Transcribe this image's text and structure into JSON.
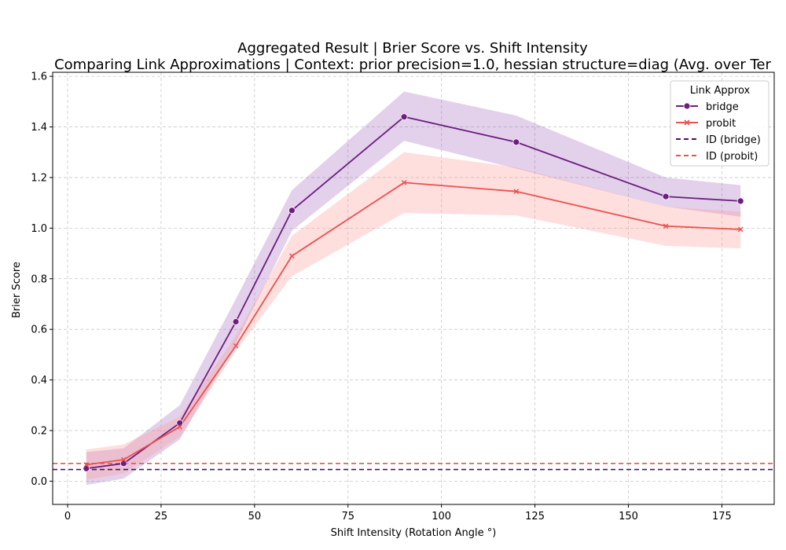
{
  "chart_data": {
    "type": "line",
    "title": "Aggregated Result | Brier Score vs. Shift Intensity",
    "subtitle": "Comparing Link Approximations | Context: prior precision=1.0, hessian structure=diag (Avg. over Ter",
    "xlabel": "Shift Intensity (Rotation Angle °)",
    "ylabel": "Brier Score",
    "xlim": [
      -4,
      189
    ],
    "ylim": [
      -0.092,
      1.616
    ],
    "xticks": [
      0,
      25,
      50,
      75,
      100,
      125,
      150,
      175
    ],
    "yticks": [
      0.0,
      0.2,
      0.4,
      0.6,
      0.8,
      1.0,
      1.2,
      1.4,
      1.6
    ],
    "xtick_labels": [
      "0",
      "25",
      "50",
      "75",
      "100",
      "125",
      "150",
      "175"
    ],
    "ytick_labels": [
      "0.0",
      "0.2",
      "0.4",
      "0.6",
      "0.8",
      "1.0",
      "1.2",
      "1.4",
      "1.6"
    ],
    "grid": true,
    "legend_title": "Link Approx",
    "legend_position": "top-right",
    "series": [
      {
        "name": "bridge",
        "color": "#6c1d7f",
        "marker": "circle",
        "x": [
          5,
          15,
          30,
          45,
          60,
          90,
          120,
          160,
          180
        ],
        "y": [
          0.05,
          0.07,
          0.23,
          0.63,
          1.07,
          1.44,
          1.34,
          1.125,
          1.107
        ],
        "lower": [
          -0.015,
          0.01,
          0.165,
          0.545,
          0.99,
          1.345,
          1.235,
          1.085,
          1.045
        ],
        "upper": [
          0.115,
          0.13,
          0.3,
          0.72,
          1.15,
          1.54,
          1.445,
          1.2,
          1.17
        ]
      },
      {
        "name": "probit",
        "color": "#e8534f",
        "marker": "x",
        "x": [
          5,
          15,
          30,
          45,
          60,
          90,
          120,
          160,
          180
        ],
        "y": [
          0.065,
          0.085,
          0.215,
          0.535,
          0.89,
          1.18,
          1.145,
          1.008,
          0.995
        ],
        "lower": [
          0.005,
          0.03,
          0.175,
          0.515,
          0.81,
          1.06,
          1.05,
          0.93,
          0.92
        ],
        "upper": [
          0.125,
          0.145,
          0.255,
          0.575,
          0.97,
          1.3,
          1.24,
          1.085,
          1.065
        ]
      }
    ],
    "reference_lines": [
      {
        "name": "ID (bridge)",
        "y": 0.046,
        "color": "#4a1262",
        "style": "dashed"
      },
      {
        "name": "ID (probit)",
        "y": 0.07,
        "color": "#e8534f",
        "style": "dashed"
      }
    ]
  }
}
